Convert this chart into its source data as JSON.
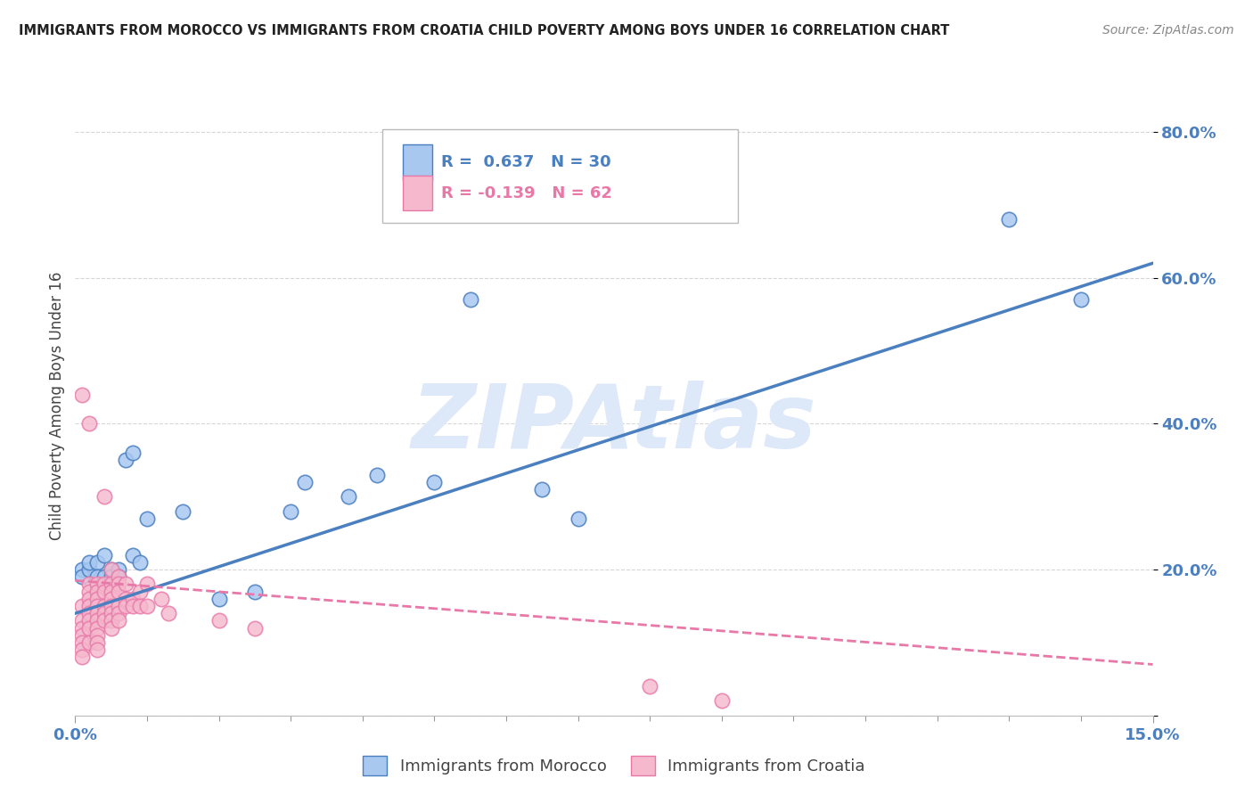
{
  "title": "IMMIGRANTS FROM MOROCCO VS IMMIGRANTS FROM CROATIA CHILD POVERTY AMONG BOYS UNDER 16 CORRELATION CHART",
  "source": "Source: ZipAtlas.com",
  "ylabel": "Child Poverty Among Boys Under 16",
  "xlim": [
    0,
    0.15
  ],
  "ylim": [
    0,
    0.85
  ],
  "yticks": [
    0.0,
    0.2,
    0.4,
    0.6,
    0.8
  ],
  "xticks": [
    0.0,
    0.15
  ],
  "xtick_labels": [
    "0.0%",
    "15.0%"
  ],
  "ytick_labels": [
    "",
    "20.0%",
    "40.0%",
    "60.0%",
    "80.0%"
  ],
  "legend1_R": " 0.637",
  "legend1_N": "30",
  "legend2_R": "-0.139",
  "legend2_N": "62",
  "color_morocco": "#a8c8f0",
  "color_croatia": "#f5b8cc",
  "color_morocco_line": "#4a7fc0",
  "color_croatia_line": "#e878a8",
  "watermark": "ZIPAtlas",
  "watermark_color": "#dde8f8",
  "morocco_line_x0": 0.0,
  "morocco_line_y0": 0.14,
  "morocco_line_x1": 0.15,
  "morocco_line_y1": 0.62,
  "croatia_line_x0": 0.0,
  "croatia_line_y0": 0.185,
  "croatia_line_x1": 0.15,
  "croatia_line_y1": 0.07,
  "morocco_x": [
    0.001,
    0.001,
    0.002,
    0.002,
    0.003,
    0.003,
    0.004,
    0.004,
    0.005,
    0.005,
    0.006,
    0.006,
    0.007,
    0.008,
    0.008,
    0.009,
    0.01,
    0.015,
    0.02,
    0.025,
    0.03,
    0.032,
    0.038,
    0.042,
    0.05,
    0.055,
    0.065,
    0.07,
    0.13,
    0.14
  ],
  "morocco_y": [
    0.2,
    0.19,
    0.2,
    0.21,
    0.21,
    0.19,
    0.19,
    0.22,
    0.2,
    0.19,
    0.2,
    0.19,
    0.35,
    0.22,
    0.36,
    0.21,
    0.27,
    0.28,
    0.16,
    0.17,
    0.28,
    0.32,
    0.3,
    0.33,
    0.32,
    0.57,
    0.31,
    0.27,
    0.68,
    0.57
  ],
  "croatia_x": [
    0.001,
    0.001,
    0.001,
    0.001,
    0.001,
    0.001,
    0.001,
    0.001,
    0.002,
    0.002,
    0.002,
    0.002,
    0.002,
    0.002,
    0.002,
    0.002,
    0.002,
    0.003,
    0.003,
    0.003,
    0.003,
    0.003,
    0.003,
    0.003,
    0.003,
    0.003,
    0.003,
    0.004,
    0.004,
    0.004,
    0.004,
    0.004,
    0.004,
    0.005,
    0.005,
    0.005,
    0.005,
    0.005,
    0.005,
    0.005,
    0.005,
    0.006,
    0.006,
    0.006,
    0.006,
    0.006,
    0.006,
    0.007,
    0.007,
    0.007,
    0.008,
    0.008,
    0.009,
    0.009,
    0.01,
    0.01,
    0.012,
    0.013,
    0.02,
    0.025,
    0.08,
    0.09
  ],
  "croatia_y": [
    0.44,
    0.15,
    0.13,
    0.12,
    0.11,
    0.1,
    0.09,
    0.08,
    0.4,
    0.18,
    0.17,
    0.16,
    0.15,
    0.14,
    0.13,
    0.12,
    0.1,
    0.18,
    0.17,
    0.16,
    0.15,
    0.14,
    0.13,
    0.12,
    0.11,
    0.1,
    0.09,
    0.3,
    0.18,
    0.17,
    0.15,
    0.14,
    0.13,
    0.2,
    0.18,
    0.17,
    0.16,
    0.15,
    0.14,
    0.13,
    0.12,
    0.19,
    0.18,
    0.17,
    0.15,
    0.14,
    0.13,
    0.18,
    0.16,
    0.15,
    0.16,
    0.15,
    0.17,
    0.15,
    0.18,
    0.15,
    0.16,
    0.14,
    0.13,
    0.12,
    0.04,
    0.02
  ]
}
